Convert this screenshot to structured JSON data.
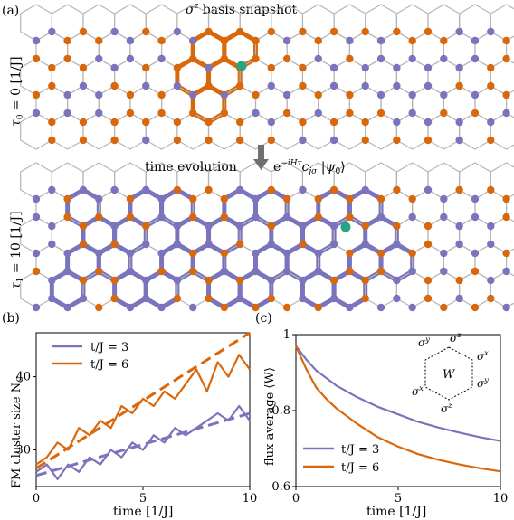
{
  "panel_a": {
    "label": "(a)",
    "title": "σ",
    "title_sup": "z",
    "title_rest": " basis snapshot",
    "top_ylabel_main": "τ",
    "top_ylabel_sub": "0",
    "top_ylabel_rest": " = 0 [1/J]",
    "bottom_ylabel_main": "τ",
    "bottom_ylabel_sub": "1",
    "bottom_ylabel_rest": " = 10 [1/J]",
    "arrow_label": "time evolution",
    "operator_prefix": "e",
    "operator_sup": "−iHτ",
    "operator_c": "c",
    "operator_sub": "jσ",
    "operator_ket": " |ψ",
    "operator_ket_sub": "0",
    "operator_ket_end": "⟩",
    "colors": {
      "orange": "#d9680d",
      "purple": "#7a74bd",
      "teal": "#2aa384",
      "lattice": "#b5b5b5"
    }
  },
  "chart_data": [
    {
      "panel": "(b)",
      "type": "line",
      "ylabel_main": "FM cluster size N",
      "ylabel_sub": "C",
      "xlabel": "time [1/J]",
      "xlim": [
        0,
        10
      ],
      "ylim": [
        25,
        46
      ],
      "xticks": [
        0,
        5,
        10
      ],
      "yticks": [
        30,
        40
      ],
      "legend_placement": "top-left",
      "series": [
        {
          "name": "t/J = 3",
          "color": "#7a74bd",
          "x": [
            0,
            0.5,
            1,
            1.5,
            2,
            2.5,
            3,
            3.5,
            4,
            4.5,
            5,
            5.5,
            6,
            6.5,
            7,
            7.5,
            8,
            8.5,
            9,
            9.5,
            10
          ],
          "values": [
            27,
            28,
            26,
            28,
            27,
            29,
            28,
            30,
            29,
            31,
            30,
            32,
            31,
            33,
            32,
            33,
            34,
            35,
            34,
            36,
            34
          ],
          "fit": [
            26.5,
            35.0
          ]
        },
        {
          "name": "t/J = 6",
          "color": "#d9680d",
          "x": [
            0,
            0.5,
            1,
            1.5,
            2,
            2.5,
            3,
            3.5,
            4,
            4.5,
            5,
            5.5,
            6,
            6.5,
            7,
            7.5,
            8,
            8.5,
            9,
            9.5,
            10
          ],
          "values": [
            28,
            29,
            31,
            30,
            33,
            32,
            34,
            33,
            36,
            35,
            37,
            36,
            38,
            37,
            39,
            41,
            38,
            42,
            40,
            43,
            41
          ],
          "fit": [
            27.5,
            46.0
          ]
        }
      ]
    },
    {
      "panel": "(c)",
      "type": "line",
      "ylabel": "flux average ⟨W⟩",
      "xlabel": "time [1/J]",
      "xlim": [
        0,
        10
      ],
      "ylim": [
        0.6,
        1.0
      ],
      "xticks": [
        0,
        5,
        10
      ],
      "yticks": [
        0.6,
        0.8,
        1.0
      ],
      "legend_placement": "bottom-left",
      "inset_labels": [
        "σ",
        "σ",
        "σ",
        "σ",
        "σ",
        "σ"
      ],
      "inset_sups": [
        "y",
        "z",
        "x",
        "x",
        "z",
        "y"
      ],
      "inset_center": "W",
      "series": [
        {
          "name": "t/J = 3",
          "color": "#7a74bd",
          "x": [
            0,
            0.5,
            1,
            1.5,
            2,
            3,
            4,
            5,
            6,
            7,
            8,
            9,
            10
          ],
          "values": [
            0.97,
            0.935,
            0.905,
            0.885,
            0.865,
            0.835,
            0.81,
            0.79,
            0.77,
            0.755,
            0.742,
            0.73,
            0.72
          ]
        },
        {
          "name": "t/J = 6",
          "color": "#d9680d",
          "x": [
            0,
            0.5,
            1,
            1.5,
            2,
            3,
            4,
            5,
            6,
            7,
            8,
            9,
            10
          ],
          "values": [
            0.97,
            0.91,
            0.86,
            0.83,
            0.805,
            0.765,
            0.73,
            0.705,
            0.685,
            0.67,
            0.658,
            0.648,
            0.64
          ]
        }
      ]
    }
  ]
}
